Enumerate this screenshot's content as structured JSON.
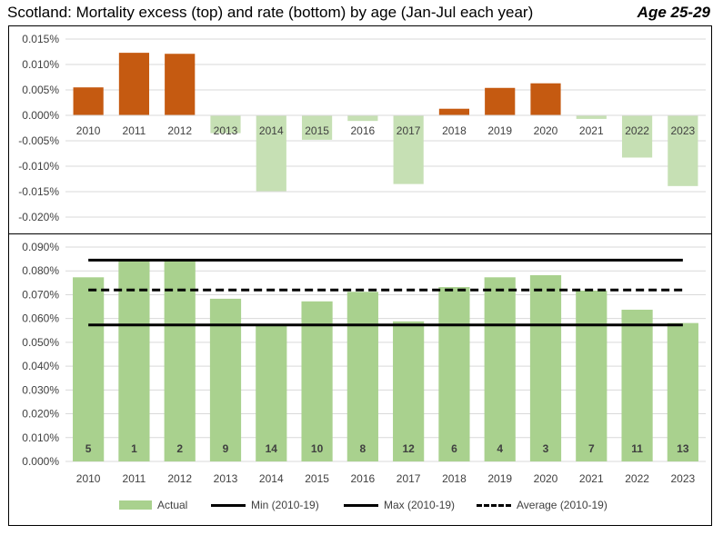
{
  "title": "Scotland: Mortality excess (top) and rate (bottom) by age (Jan-Jul each year)",
  "subtitle": "Age 25-29",
  "colors": {
    "excess_positive": "#C55A11",
    "excess_negative": "#C6E0B4",
    "actual": "#A9D18E",
    "line": "#000000",
    "grid": "#D9D9D9"
  },
  "legend": {
    "actual": "Actual",
    "min": "Min (2010-19)",
    "max": "Max (2010-19)",
    "avg": "Average (2010-19)"
  },
  "chart_data": [
    {
      "type": "bar",
      "categories": [
        "2010",
        "2011",
        "2012",
        "2013",
        "2014",
        "2015",
        "2016",
        "2017",
        "2018",
        "2019",
        "2020",
        "2021",
        "2022",
        "2023"
      ],
      "values": [
        0.0055,
        0.0123,
        0.0121,
        -0.0035,
        -0.0149,
        -0.0048,
        -0.0011,
        -0.0135,
        0.0013,
        0.0054,
        0.0063,
        -0.0007,
        -0.0083,
        -0.0139
      ],
      "ylim": [
        -0.02,
        0.015
      ],
      "yticks": [
        "0.015%",
        "0.010%",
        "0.005%",
        "0.000%",
        "-0.005%",
        "-0.010%",
        "-0.015%",
        "-0.020%"
      ],
      "ytick_values": [
        0.015,
        0.01,
        0.005,
        0,
        -0.005,
        -0.01,
        -0.015,
        -0.02
      ],
      "grid": true
    },
    {
      "type": "bar",
      "categories": [
        "2010",
        "2011",
        "2012",
        "2013",
        "2014",
        "2015",
        "2016",
        "2017",
        "2018",
        "2019",
        "2020",
        "2021",
        "2022",
        "2023"
      ],
      "series": [
        {
          "name": "Actual",
          "values": [
            0.0773,
            0.0845,
            0.0845,
            0.0683,
            0.0573,
            0.0672,
            0.0712,
            0.0588,
            0.0732,
            0.0773,
            0.0782,
            0.0717,
            0.0637,
            0.0581
          ]
        },
        {
          "name": "Min (2010-19)",
          "type": "line",
          "values": [
            0.0573,
            0.0573,
            0.0573,
            0.0573,
            0.0573,
            0.0573,
            0.0573,
            0.0573,
            0.0573,
            0.0573,
            0.0573,
            0.0573,
            0.0573,
            0.0573
          ]
        },
        {
          "name": "Max (2010-19)",
          "type": "line",
          "values": [
            0.0845,
            0.0845,
            0.0845,
            0.0845,
            0.0845,
            0.0845,
            0.0845,
            0.0845,
            0.0845,
            0.0845,
            0.0845,
            0.0845,
            0.0845,
            0.0845
          ]
        },
        {
          "name": "Average (2010-19)",
          "type": "line",
          "dashed": true,
          "values": [
            0.072,
            0.072,
            0.072,
            0.072,
            0.072,
            0.072,
            0.072,
            0.072,
            0.072,
            0.072,
            0.072,
            0.072,
            0.072,
            0.072
          ]
        }
      ],
      "rank_labels": [
        "5",
        "1",
        "2",
        "9",
        "14",
        "10",
        "8",
        "12",
        "6",
        "4",
        "3",
        "7",
        "11",
        "13"
      ],
      "ylim": [
        0,
        0.09
      ],
      "yticks": [
        "0.090%",
        "0.080%",
        "0.070%",
        "0.060%",
        "0.050%",
        "0.040%",
        "0.030%",
        "0.020%",
        "0.010%",
        "0.000%"
      ],
      "ytick_values": [
        0.09,
        0.08,
        0.07,
        0.06,
        0.05,
        0.04,
        0.03,
        0.02,
        0.01,
        0
      ],
      "grid": true,
      "legend_position": "bottom"
    }
  ]
}
